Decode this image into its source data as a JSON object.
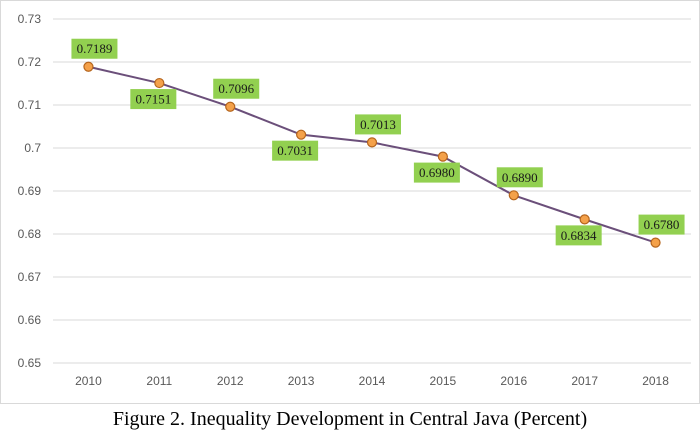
{
  "caption": "Figure 2. Inequality Development in Central Java (Percent)",
  "colors": {
    "line": "#6b4f7a",
    "marker_fill": "#f4a14a",
    "marker_stroke": "#b5651d",
    "label_bg": "#92d050",
    "grid": "#d9d9d9"
  },
  "chart_data": {
    "type": "line",
    "title": "",
    "xlabel": "",
    "ylabel": "",
    "categories": [
      "2010",
      "2011",
      "2012",
      "2013",
      "2014",
      "2015",
      "2016",
      "2017",
      "2018"
    ],
    "series": [
      {
        "values": [
          0.7189,
          0.7151,
          0.7096,
          0.7031,
          0.7013,
          0.698,
          0.689,
          0.6834,
          0.678
        ],
        "data_labels": [
          "0.7189",
          "0.7151",
          "0.7096",
          "0.7031",
          "0.7013",
          "0.6980",
          "0.6890",
          "0.6834",
          "0.6780"
        ],
        "label_positions": [
          "above",
          "below",
          "above",
          "below",
          "above",
          "below",
          "above",
          "below",
          "above"
        ]
      }
    ],
    "ylim": [
      0.65,
      0.73
    ],
    "y_ticks": [
      "0.65",
      "0.66",
      "0.67",
      "0.68",
      "0.69",
      "0.7",
      "0.71",
      "0.72",
      "0.73"
    ],
    "grid": true,
    "legend": "none"
  }
}
